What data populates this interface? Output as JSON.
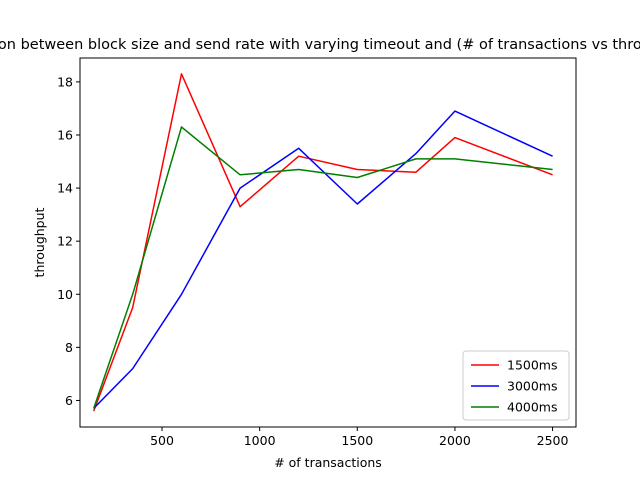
{
  "chart_data": {
    "type": "line",
    "title": "Relation between block size and send rate with varying timeout and (# of transactions vs throughput)",
    "xlabel": "# of transactions",
    "ylabel": "throughput",
    "xlim": [
      80,
      2620
    ],
    "ylim": [
      5.0,
      18.9
    ],
    "xticks": [
      500,
      1000,
      1500,
      2000,
      2500
    ],
    "yticks": [
      6,
      8,
      10,
      12,
      14,
      16,
      18
    ],
    "grid": false,
    "legend_position": "lower right",
    "series": [
      {
        "name": "1500ms",
        "color": "#ff0000",
        "x": [
          150,
          350,
          600,
          900,
          1200,
          1500,
          1800,
          2000,
          2500
        ],
        "values": [
          5.6,
          9.5,
          18.3,
          13.3,
          15.2,
          14.7,
          14.6,
          15.9,
          14.5
        ]
      },
      {
        "name": "3000ms",
        "color": "#0000ff",
        "x": [
          150,
          350,
          600,
          900,
          1200,
          1500,
          1800,
          2000,
          2500
        ],
        "values": [
          5.7,
          7.2,
          10.0,
          14.0,
          15.5,
          13.4,
          15.3,
          16.9,
          15.2
        ]
      },
      {
        "name": "4000ms",
        "color": "#008000",
        "x": [
          150,
          350,
          600,
          900,
          1200,
          1500,
          1800,
          2000,
          2500
        ],
        "values": [
          5.7,
          10.0,
          16.3,
          14.5,
          14.7,
          14.4,
          15.1,
          15.1,
          14.7
        ]
      }
    ]
  }
}
